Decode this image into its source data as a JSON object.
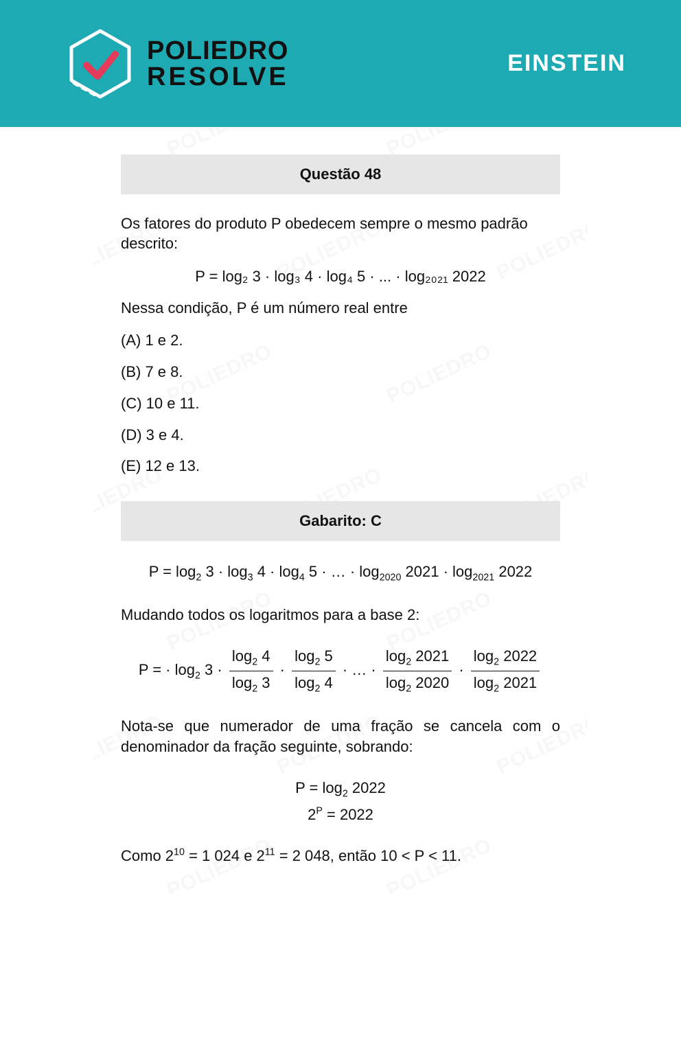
{
  "colors": {
    "banner_bg": "#1eaab3",
    "logo_text": "#111111",
    "exam_name": "#ffffff",
    "bar_bg": "#e6e6e6",
    "watermark": "#f1f1f1"
  },
  "header": {
    "brand_line1": "POLIEDRO",
    "brand_line2": "RESOLVE",
    "exam": "EINSTEIN"
  },
  "question": {
    "title": "Questão 48",
    "prompt": "Os fatores do produto P obedecem sempre o mesmo padrão descrito:",
    "formula_main": "P = log₂ 3 · log₃ 4 · log₄ 5 · ... · log₂₀₂₁ 2022",
    "condition": "Nessa condição, P é um número real entre",
    "options": {
      "A": "(A) 1 e 2.",
      "B": "(B) 7 e 8.",
      "C": "(C) 10 e 11.",
      "D": "(D) 3 e 4.",
      "E": "(E) 12 e 13."
    }
  },
  "answer": {
    "title": "Gabarito: C",
    "line1_html": "P = log<span class=\"sub\">2</span> 3 · log<span class=\"sub\">3</span> 4 · log<span class=\"sub\">4</span> 5 · … · log<span class=\"sub\">2020</span> 2021 · log<span class=\"sub\">2021</span> 2022",
    "step_base2": "Mudando todos os logaritmos para a base 2:",
    "line2_html": "P = · log<span class=\"sub\">2</span> 3 · <span class=\"frac\"><span class=\"num\">log<span class=\"sub\">2</span> 4</span><span class=\"den\">log<span class=\"sub\">2</span> 3</span></span> · <span class=\"frac\"><span class=\"num\">log<span class=\"sub\">2</span> 5</span><span class=\"den\">log<span class=\"sub\">2</span> 4</span></span> · … · <span class=\"frac\"><span class=\"num\">log<span class=\"sub\">2</span> 2021</span><span class=\"den\">log<span class=\"sub\">2</span> 2020</span></span> · <span class=\"frac\"><span class=\"num\">log<span class=\"sub\">2</span> 2022</span><span class=\"den\">log<span class=\"sub\">2</span> 2021</span></span>",
    "cancel_note": "Nota-se que numerador de uma fração se cancela com o denominador da fração seguinte, sobrando:",
    "result1_html": "P = log<span class=\"sub\">2</span> 2022",
    "result2_html": "2<span class=\"sup\">P</span> = 2022",
    "conclusion_html": "Como 2<span class=\"sup\">10</span> = 1 024 e 2<span class=\"sup\">11</span> = 2 048, então 10 < P < 11."
  },
  "watermark_text": "POLIEDRO"
}
